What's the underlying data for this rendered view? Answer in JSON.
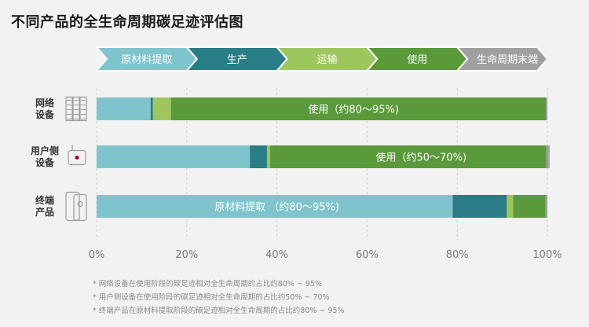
{
  "page": {
    "title": "不同产品的全生命周期碳足迹评估图"
  },
  "colors": {
    "raw": "#7fc4cc",
    "production": "#2a7d86",
    "transport": "#9dc75e",
    "use": "#5a9a3a",
    "eol": "#a0a0a0",
    "grid": "#cfcfcf",
    "tick": "#777777"
  },
  "chart_data": {
    "type": "bar",
    "orientation": "horizontal",
    "stacked": true,
    "xlim": [
      0,
      100
    ],
    "x_ticks": [
      "0%",
      "20%",
      "40%",
      "60%",
      "80%",
      "100%"
    ],
    "stages": [
      "原材料提取",
      "生产",
      "运输",
      "使用",
      "生命周期末端"
    ],
    "categories": [
      {
        "label_line1": "网络",
        "label_line2": "设备",
        "icon": "server-rack-icon"
      },
      {
        "label_line1": "用户侧",
        "label_line2": "设备",
        "icon": "router-icon"
      },
      {
        "label_line1": "终端",
        "label_line2": "产品",
        "icon": "phone-icon"
      }
    ],
    "series": [
      {
        "name": "原材料提取",
        "values": [
          12,
          34,
          79
        ]
      },
      {
        "name": "生产",
        "values": [
          0.5,
          3.8,
          12
        ]
      },
      {
        "name": "运输",
        "values": [
          4,
          0.7,
          1.4
        ]
      },
      {
        "name": "使用",
        "values": [
          83.2,
          61.3,
          7.2
        ]
      },
      {
        "name": "生命周期末端",
        "values": [
          0.3,
          0.7,
          0.4
        ]
      }
    ],
    "bar_labels": [
      {
        "text": "使用（约80～95%)",
        "center": 57
      },
      {
        "text": "使用（约50～70%)",
        "center": 72
      },
      {
        "text": "原材料提取 （约80～95%)",
        "center": 40
      }
    ]
  },
  "footnotes": [
    "* 网络设备在使用阶段的碳足迹相对全生命周期的占比约80% ~ 95%",
    "* 用户侧设备在使用阶段的碳足迹相对全生命周期的占比约50% ~ 70%",
    "* 终端产品在原材料提取阶段的碳足迹相对全生命周期的占比约80% ~ 95%"
  ]
}
